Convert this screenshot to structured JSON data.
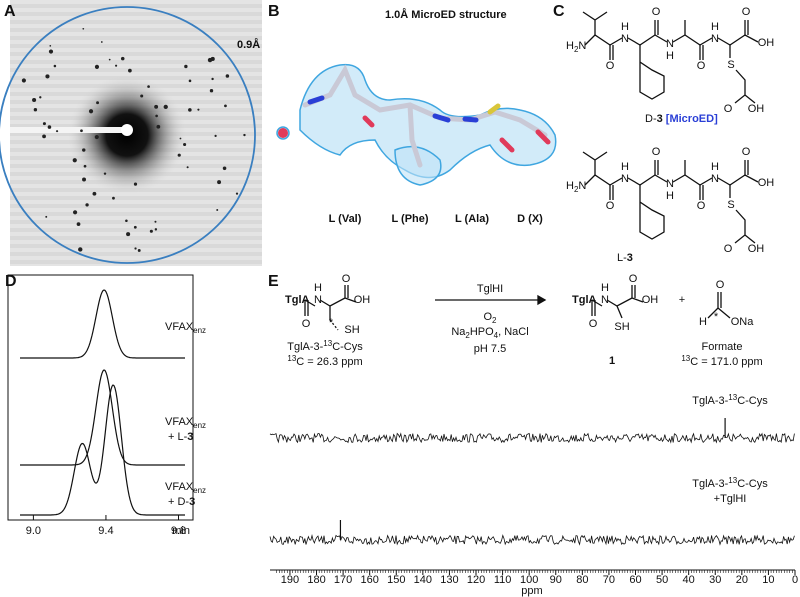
{
  "panels": {
    "a": {
      "label": "A",
      "resolution": "0.9Å"
    },
    "b": {
      "label": "B",
      "title": "1.0Å MicroED structure",
      "residues": [
        "L (Val)",
        "L (Phe)",
        "L (Ala)",
        "D (X)"
      ]
    },
    "c": {
      "label": "C",
      "d3": {
        "atoms": [
          "O",
          "N",
          "H",
          "O",
          "N",
          "H",
          "O",
          "N",
          "H",
          "O",
          "OH",
          "S",
          "O",
          "OH"
        ],
        "amine": [
          "H",
          "2",
          "N"
        ],
        "caption": [
          "D-",
          "3",
          " [MicroED]"
        ]
      },
      "l3": {
        "atoms": [
          "O",
          "N",
          "H",
          "O",
          "N",
          "H",
          "O",
          "N",
          "H",
          "O",
          "OH",
          "S",
          "O",
          "OH"
        ],
        "amine": [
          "H",
          "2",
          "N"
        ],
        "caption": [
          "L-",
          "3"
        ]
      }
    },
    "d": {
      "label": "D",
      "xlim": [
        8.86,
        9.88
      ],
      "xticks": [
        {
          "value": 9.0,
          "label": "9.0"
        },
        9.4,
        9.8
      ],
      "xlabel": "min",
      "traces": [
        {
          "name": [
            "VFAX",
            "enz"
          ],
          "peaks": [
            {
              "center": 9.39,
              "height": 1
            }
          ]
        },
        {
          "name": [
            "VFAX",
            "enz",
            "+ L-",
            "3"
          ],
          "peaks": [
            {
              "center": 9.39,
              "height": 1
            }
          ]
        },
        {
          "name": [
            "VFAX",
            "enz",
            "+ D-",
            "3"
          ],
          "peaks": [
            {
              "center": 9.27,
              "height": 0.55
            },
            {
              "center": 9.44,
              "height": 1
            }
          ]
        }
      ]
    },
    "e": {
      "label": "E",
      "substrate": {
        "atoms": [
          "TglA",
          "H",
          "N",
          "O",
          "OH",
          "O",
          "*",
          "SH"
        ],
        "name": [
          "TglA-3-",
          "13",
          "C-Cys"
        ],
        "shift": [
          "13",
          "C = 26.3 ppm"
        ]
      },
      "conditions": {
        "enzyme": "TglHI",
        "oxidant": [
          "O",
          "2"
        ],
        "buffer": [
          "Na",
          "2",
          "HPO",
          "4",
          ", NaCl"
        ],
        "ph": "pH 7.5"
      },
      "product": {
        "atoms": [
          "TglA",
          "H",
          "N",
          "O",
          "OH",
          "O",
          "SH"
        ],
        "label": "1"
      },
      "plus": "+",
      "formate": {
        "atoms": [
          "O",
          "H",
          "*",
          "ONa"
        ],
        "name": "Formate",
        "shift": [
          "13",
          "C = 171.0 ppm"
        ]
      },
      "spectra": [
        {
          "name": [
            "TglA-3-",
            "13",
            "C-Cys"
          ],
          "peak": 26.3
        },
        {
          "name": [
            "TglA-3-",
            "13",
            "C-Cys",
            "+TglHI"
          ],
          "peak": 171.0
        }
      ],
      "xlim": [
        197.5,
        0
      ],
      "xticks": [
        190,
        180,
        170,
        160,
        150,
        140,
        130,
        120,
        110,
        100,
        90,
        80,
        70,
        60,
        50,
        40,
        30,
        20,
        10,
        0
      ],
      "xlabel": "ppm"
    }
  }
}
